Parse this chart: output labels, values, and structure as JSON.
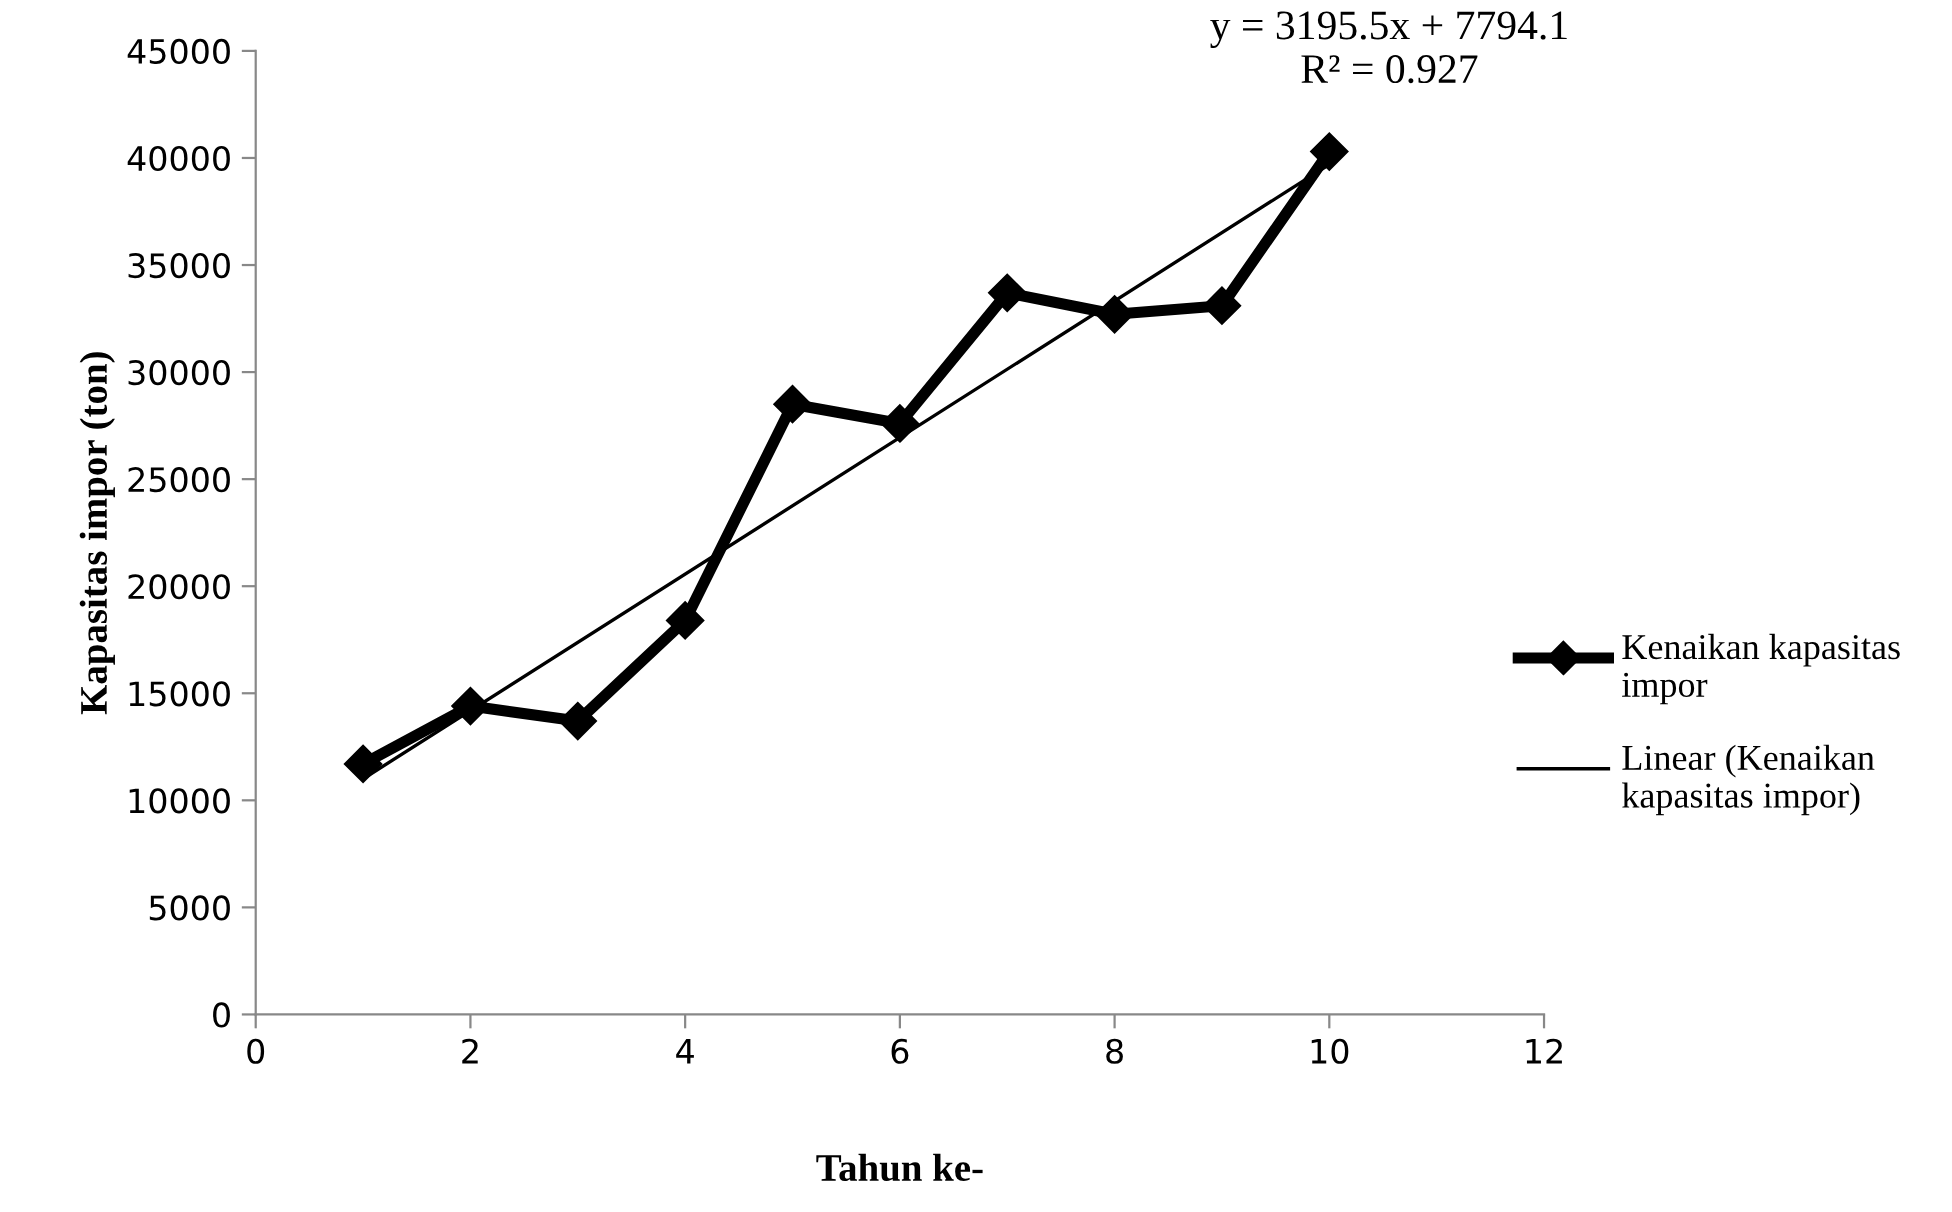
{
  "chart_data": {
    "type": "line",
    "xlabel": "Tahun ke-",
    "ylabel": "Kapasitas impor (ton)",
    "x": [
      1,
      2,
      3,
      4,
      5,
      6,
      7,
      8,
      9,
      10
    ],
    "series": [
      {
        "name": "Kenaikan kapasitas impor",
        "color": "#000000",
        "marker": "diamond",
        "values": [
          11700,
          14400,
          13700,
          18400,
          28500,
          27600,
          33700,
          32700,
          33100,
          40300
        ]
      },
      {
        "name": "Linear (Kenaikan kapasitas impor)",
        "color": "#000000",
        "marker": "none",
        "x": [
          1,
          10
        ],
        "values": [
          11000,
          39700
        ]
      }
    ],
    "annotations": [
      "y = 3195.5x + 7794.1\nR² = 0.927"
    ],
    "xlim": [
      0,
      12
    ],
    "xticks": [
      0,
      2,
      4,
      6,
      8,
      10,
      12
    ],
    "ylim": [
      0,
      45000
    ],
    "yticks": [
      0,
      5000,
      10000,
      15000,
      20000,
      25000,
      30000,
      35000,
      40000,
      45000
    ],
    "legend": "right",
    "grid": false
  }
}
